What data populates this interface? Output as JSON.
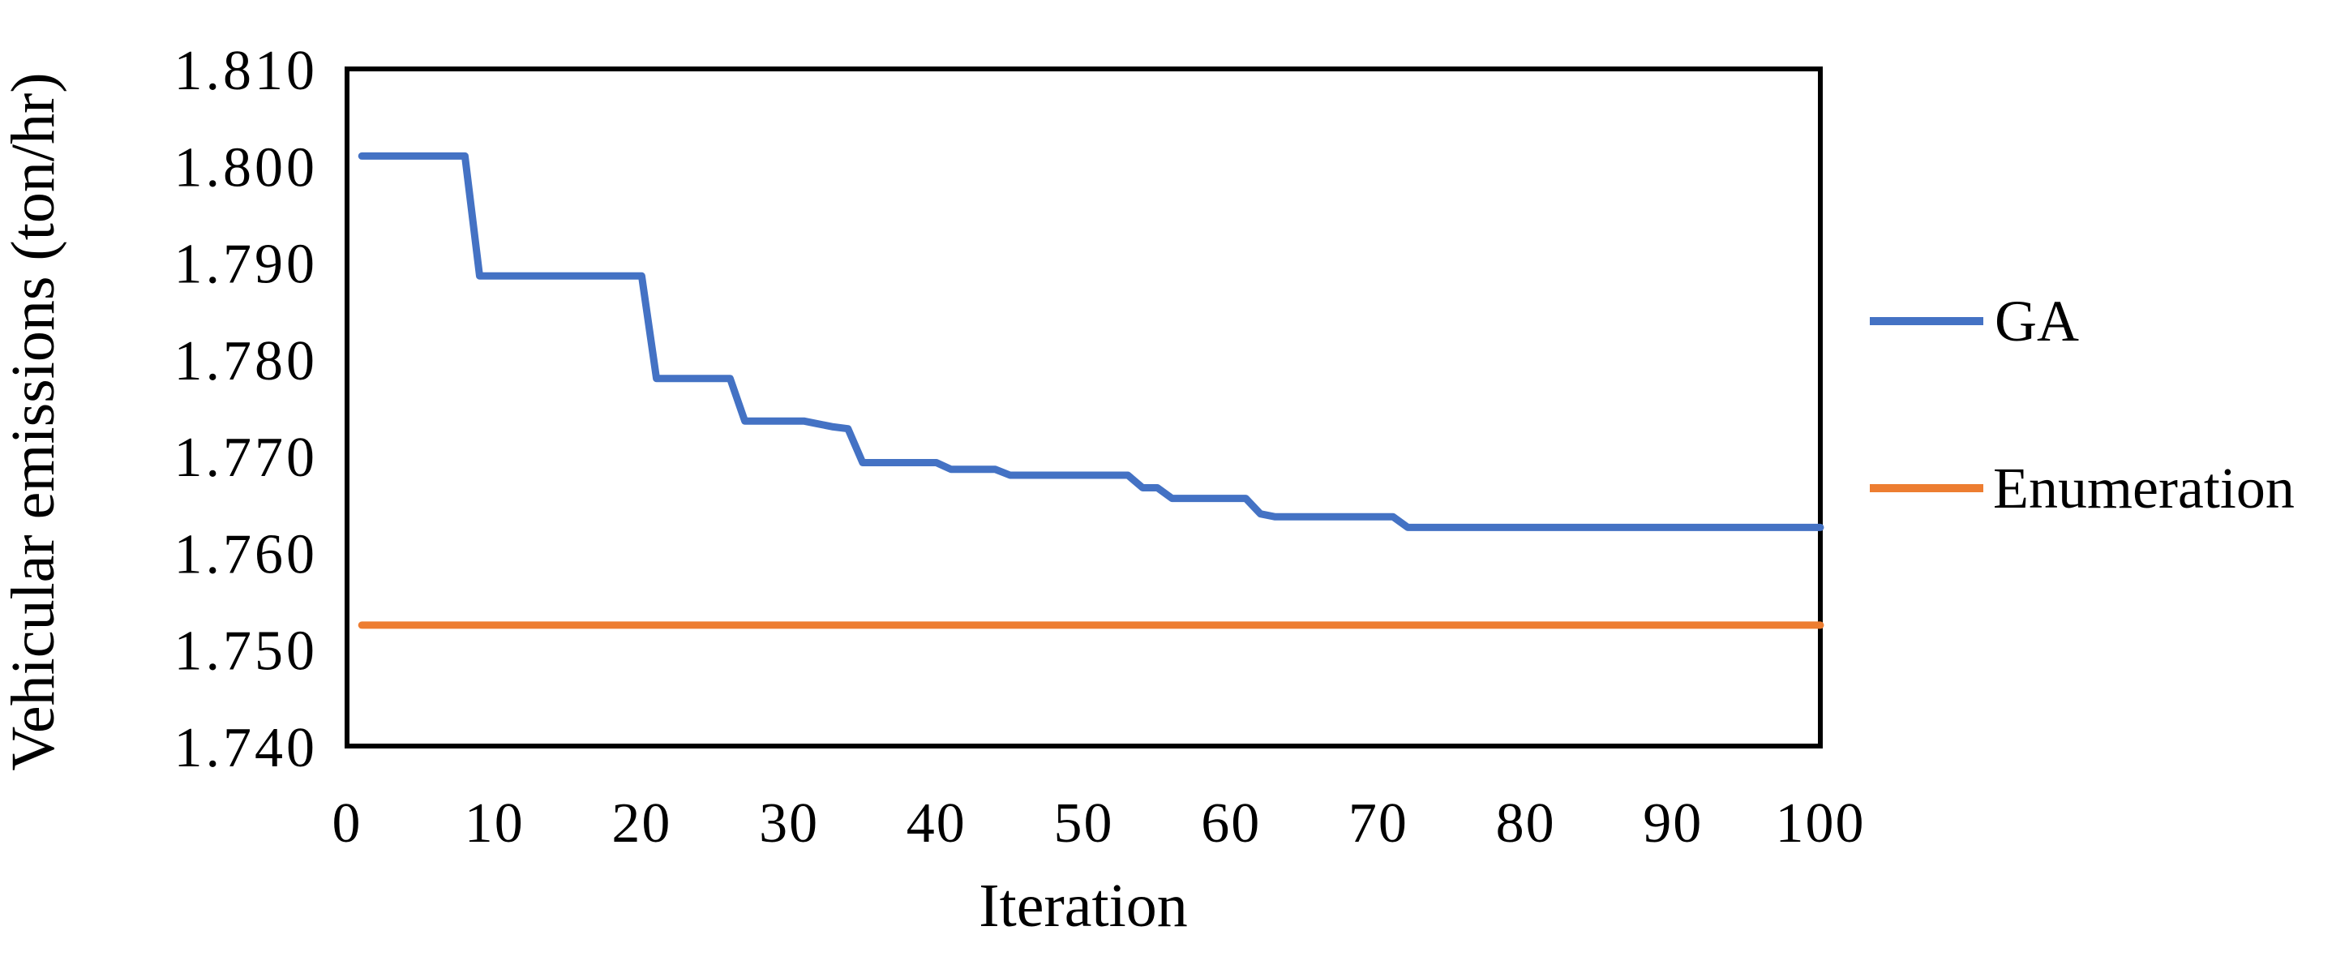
{
  "chart": {
    "background": "#ffffff",
    "axis_color": "#000000",
    "text_color": "#000000",
    "legend": {
      "position": "right",
      "items": [
        {
          "label": "GA",
          "color": "#4472C4"
        },
        {
          "label": "Enumeration",
          "color": "#ED7D31"
        }
      ]
    }
  },
  "chart_data": {
    "type": "line",
    "title": "",
    "xlabel": "Iteration",
    "ylabel": "Vehicular emissions (ton/hr)",
    "xlim": [
      0,
      100
    ],
    "ylim": [
      1.74,
      1.81
    ],
    "x_ticks": [
      0,
      10,
      20,
      30,
      40,
      50,
      60,
      70,
      80,
      90,
      100
    ],
    "y_ticks": [
      1.74,
      1.75,
      1.76,
      1.77,
      1.78,
      1.79,
      1.8,
      1.81
    ],
    "y_tick_decimals": 3,
    "grid": false,
    "legend_position": "right",
    "series": [
      {
        "name": "GA",
        "color": "#4472C4",
        "x_start": 1,
        "values": [
          1.801,
          1.801,
          1.801,
          1.801,
          1.801,
          1.801,
          1.801,
          1.801,
          1.7886,
          1.7886,
          1.7886,
          1.7886,
          1.7886,
          1.7886,
          1.7886,
          1.7886,
          1.7886,
          1.7886,
          1.7886,
          1.7886,
          1.778,
          1.778,
          1.778,
          1.778,
          1.778,
          1.778,
          1.7736,
          1.7736,
          1.7736,
          1.7736,
          1.7736,
          1.7733,
          1.773,
          1.7728,
          1.7693,
          1.7693,
          1.7693,
          1.7693,
          1.7693,
          1.7693,
          1.7686,
          1.7686,
          1.7686,
          1.7686,
          1.768,
          1.768,
          1.768,
          1.768,
          1.768,
          1.768,
          1.768,
          1.768,
          1.768,
          1.7667,
          1.7667,
          1.7656,
          1.7656,
          1.7656,
          1.7656,
          1.7656,
          1.7656,
          1.764,
          1.7637,
          1.7637,
          1.7637,
          1.7637,
          1.7637,
          1.7637,
          1.7637,
          1.7637,
          1.7637,
          1.7626,
          1.7626,
          1.7626,
          1.7626,
          1.7626,
          1.7626,
          1.7626,
          1.7626,
          1.7626,
          1.7626,
          1.7626,
          1.7626,
          1.7626,
          1.7626,
          1.7626,
          1.7626,
          1.7626,
          1.7626,
          1.7626,
          1.7626,
          1.7626,
          1.7626,
          1.7626,
          1.7626,
          1.7626,
          1.7626,
          1.7626,
          1.7626,
          1.7626
        ]
      },
      {
        "name": "Enumeration",
        "color": "#ED7D31",
        "x": [
          1,
          100
        ],
        "values": [
          1.7525,
          1.7525
        ]
      }
    ]
  }
}
